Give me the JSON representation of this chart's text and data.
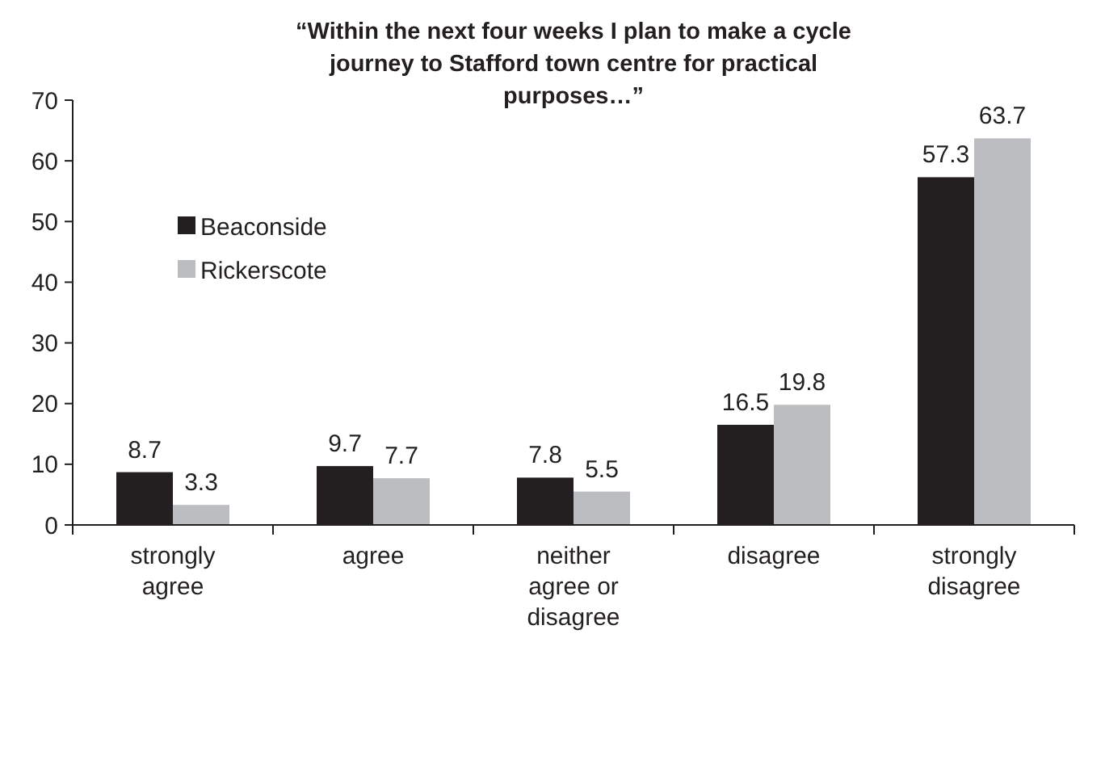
{
  "chart_data": {
    "type": "bar",
    "title": "“Within the next four weeks I plan to make a cycle journey to Stafford town centre for practical purposes…”",
    "categories": [
      "strongly agree",
      "agree",
      "neither agree or disagree",
      "disagree",
      "strongly disagree"
    ],
    "series": [
      {
        "name": "Beaconside",
        "color": "#231f20",
        "values": [
          8.7,
          9.7,
          7.8,
          16.5,
          57.3
        ]
      },
      {
        "name": "Rickerscote",
        "color": "#bcbdc0",
        "values": [
          3.3,
          7.7,
          5.5,
          19.8,
          63.7
        ]
      }
    ],
    "ylim": [
      0,
      70
    ],
    "yticks": [
      0,
      10,
      20,
      30,
      40,
      50,
      60,
      70
    ],
    "grid": false,
    "legend": "top left",
    "data_labels": true
  }
}
